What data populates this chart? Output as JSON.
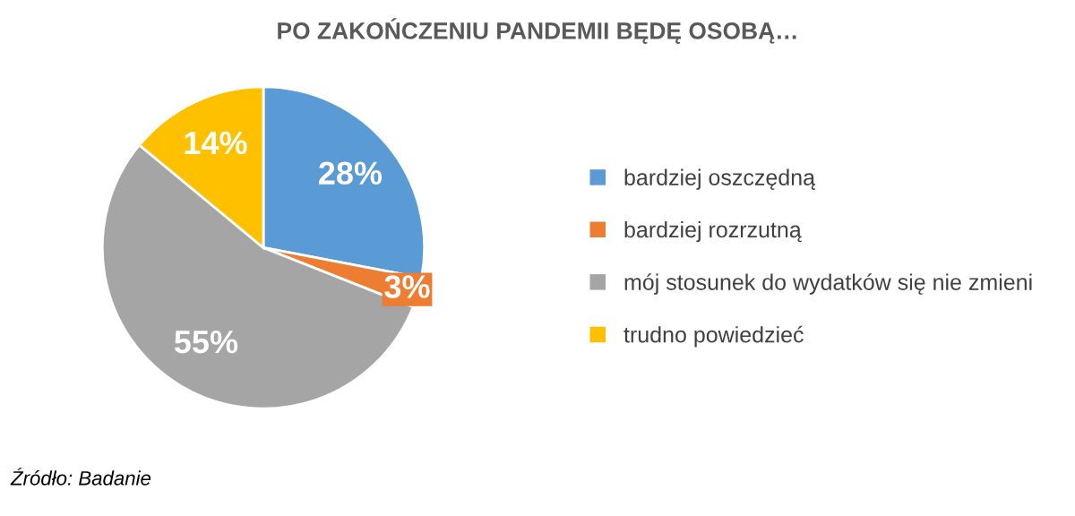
{
  "chart_data": {
    "type": "pie",
    "title": "PO ZAKOŃCZENIU PANDEMII BĘDĘ OSOBĄ…",
    "categories": [
      "bardziej oszczędną",
      "bardziej rozrzutną",
      "mój stosunek do wydatków się nie zmieni",
      "trudno powiedzieć"
    ],
    "values": [
      28,
      3,
      55,
      14
    ],
    "colors": [
      "#5b9bd5",
      "#ed7d31",
      "#a5a5a5",
      "#ffc000"
    ],
    "value_labels": [
      "28%",
      "3%",
      "55%",
      "14%"
    ],
    "legend": "right",
    "annotations": [
      "Źródło: Badanie"
    ]
  }
}
